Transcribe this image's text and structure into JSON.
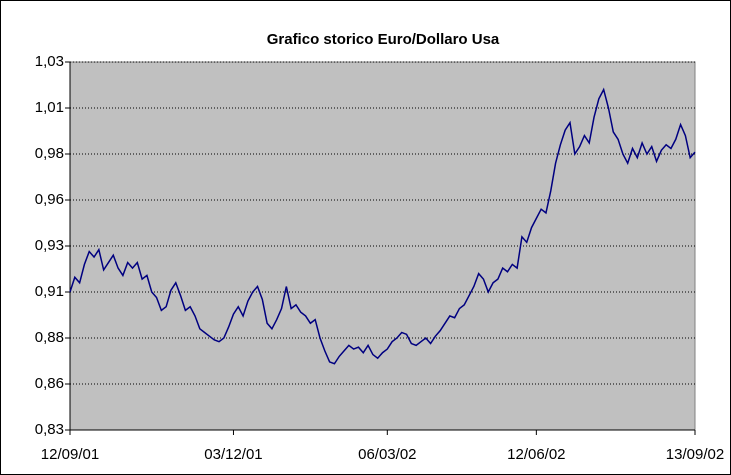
{
  "chart_data": {
    "type": "line",
    "title": "Grafico storico Euro/Dollaro Usa",
    "categories": [
      "12/09/01",
      null,
      null,
      null,
      null,
      null,
      null,
      null,
      null,
      null,
      null,
      null,
      null,
      null,
      null,
      null,
      null,
      null,
      null,
      null,
      null,
      null,
      null,
      null,
      null,
      null,
      null,
      null,
      null,
      null,
      null,
      null,
      null,
      null,
      "03/12/01",
      null,
      null,
      null,
      null,
      null,
      null,
      null,
      null,
      null,
      null,
      null,
      null,
      null,
      null,
      null,
      null,
      null,
      null,
      null,
      null,
      null,
      null,
      null,
      null,
      null,
      null,
      null,
      null,
      null,
      null,
      null,
      "06/03/02",
      null,
      null,
      null,
      null,
      null,
      null,
      null,
      null,
      null,
      null,
      null,
      null,
      null,
      null,
      null,
      null,
      null,
      null,
      null,
      null,
      null,
      null,
      null,
      null,
      null,
      null,
      null,
      null,
      null,
      null,
      "12/06/02",
      null,
      null,
      null,
      null,
      null,
      null,
      null,
      null,
      null,
      null,
      null,
      null,
      null,
      null,
      null,
      null,
      null,
      null,
      null,
      null,
      null,
      null,
      null,
      null,
      null,
      null,
      null,
      null,
      null,
      null,
      null,
      null,
      "13/09/02"
    ],
    "series": [
      {
        "color": "#000080",
        "values": [
          0.905,
          0.913,
          0.91,
          0.92,
          0.927,
          0.924,
          0.928,
          0.917,
          0.921,
          0.925,
          0.918,
          0.914,
          0.921,
          0.918,
          0.921,
          0.912,
          0.914,
          0.905,
          0.902,
          0.895,
          0.897,
          0.906,
          0.91,
          0.903,
          0.895,
          0.897,
          0.892,
          0.885,
          0.883,
          0.881,
          0.879,
          0.878,
          0.88,
          0.886,
          0.893,
          0.897,
          0.892,
          0.9,
          0.905,
          0.908,
          0.901,
          0.888,
          0.885,
          0.89,
          0.896,
          0.908,
          0.896,
          0.898,
          0.894,
          0.892,
          0.888,
          0.89,
          0.88,
          0.873,
          0.867,
          0.866,
          0.87,
          0.873,
          0.876,
          0.874,
          0.875,
          0.872,
          0.876,
          0.871,
          0.869,
          0.872,
          0.874,
          0.878,
          0.88,
          0.883,
          0.882,
          0.877,
          0.876,
          0.878,
          0.88,
          0.877,
          0.881,
          0.884,
          0.888,
          0.892,
          0.891,
          0.896,
          0.898,
          0.903,
          0.908,
          0.915,
          0.912,
          0.905,
          0.91,
          0.912,
          0.918,
          0.916,
          0.92,
          0.918,
          0.935,
          0.932,
          0.94,
          0.945,
          0.95,
          0.948,
          0.96,
          0.975,
          0.985,
          0.993,
          0.997,
          0.98,
          0.984,
          0.99,
          0.986,
          1.0,
          1.01,
          1.015,
          1.005,
          0.992,
          0.988,
          0.98,
          0.975,
          0.983,
          0.978,
          0.986,
          0.98,
          0.984,
          0.976,
          0.982,
          0.985,
          0.983,
          0.988,
          0.996,
          0.99,
          0.978,
          0.981
        ]
      }
    ],
    "ylim": [
      0.83,
      1.03
    ],
    "yticks": [
      {
        "value": 0.83,
        "label": "0,83"
      },
      {
        "value": 0.855,
        "label": "0,86"
      },
      {
        "value": 0.88,
        "label": "0,88"
      },
      {
        "value": 0.905,
        "label": "0,91"
      },
      {
        "value": 0.93,
        "label": "0,93"
      },
      {
        "value": 0.955,
        "label": "0,96"
      },
      {
        "value": 0.98,
        "label": "0,98"
      },
      {
        "value": 1.005,
        "label": "1,01"
      },
      {
        "value": 1.03,
        "label": "1,03"
      }
    ],
    "grid": true
  }
}
